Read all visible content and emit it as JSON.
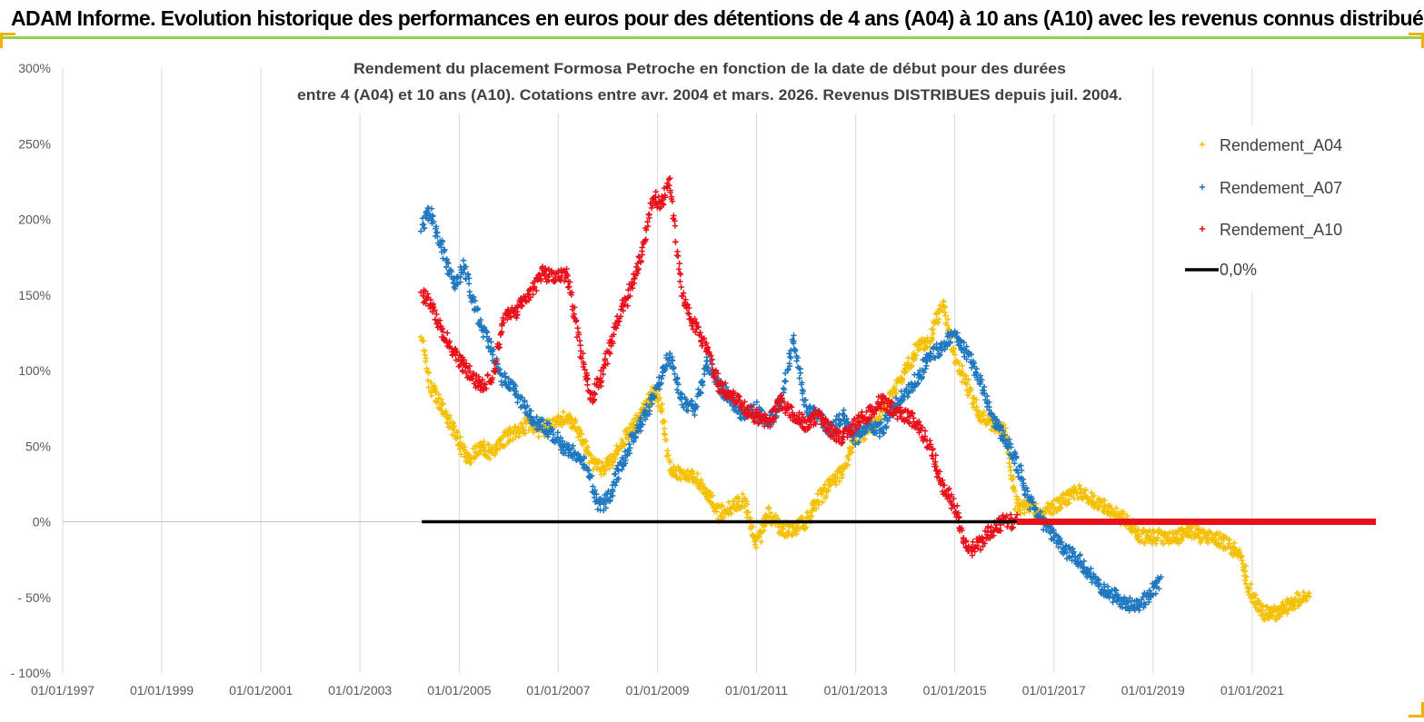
{
  "header": {
    "title": "ADAM Informe. Evolution historique des performances en euros pour des détentions de 4 ans (A04) à 10 ans (A10) avec les revenus connus distribués"
  },
  "chart_data": {
    "type": "scatter",
    "title_lines": [
      "Rendement du placement Formosa Petroche  en fonction de la date de début pour des durées",
      "entre 4 (A04) et 10 ans (A10). Cotations entre avr. 2004 et mars. 2026. Revenus DISTRIBUES depuis juil. 2004."
    ],
    "xlabel": "",
    "ylabel": "",
    "ylim": [
      -100,
      300
    ],
    "yticks": [
      300,
      250,
      200,
      150,
      100,
      50,
      0,
      -50,
      -100
    ],
    "ytick_labels": [
      "300%",
      "250%",
      "200%",
      "150%",
      "100%",
      "50%",
      "0%",
      "- 50%",
      "- 100%"
    ],
    "xlim": [
      "1997-01-01",
      "2023-07-01"
    ],
    "xticks": [
      "1997-01-01",
      "1999-01-01",
      "2001-01-01",
      "2003-01-01",
      "2005-01-01",
      "2007-01-01",
      "2009-01-01",
      "2011-01-01",
      "2013-01-01",
      "2015-01-01",
      "2017-01-01",
      "2019-01-01",
      "2021-01-01"
    ],
    "xtick_labels": [
      "01/01/1997",
      "01/01/1999",
      "01/01/2001",
      "01/01/2003",
      "01/01/2005",
      "01/01/2007",
      "01/01/2009",
      "01/01/2011",
      "01/01/2013",
      "01/01/2015",
      "01/01/2017",
      "01/01/2019",
      "01/01/2021"
    ],
    "grid": "vertical",
    "legend_position": "top-right",
    "series": [
      {
        "name": "Rendement_A04",
        "color": "#f5c000",
        "marker": "plus",
        "x": [
          "2004-04-01",
          "2004-06-01",
          "2004-09-01",
          "2004-12-01",
          "2005-03-01",
          "2005-06-01",
          "2005-09-01",
          "2005-12-01",
          "2006-03-01",
          "2006-06-01",
          "2006-09-01",
          "2006-12-01",
          "2007-03-01",
          "2007-06-01",
          "2007-09-01",
          "2007-12-01",
          "2008-03-01",
          "2008-06-01",
          "2008-09-01",
          "2008-12-01",
          "2009-02-01",
          "2009-04-01",
          "2009-07-01",
          "2009-10-01",
          "2010-01-01",
          "2010-04-01",
          "2010-07-01",
          "2010-10-01",
          "2011-01-01",
          "2011-04-01",
          "2011-07-01",
          "2011-10-01",
          "2012-01-01",
          "2012-04-01",
          "2012-07-01",
          "2012-10-01",
          "2013-01-01",
          "2013-04-01",
          "2013-07-01",
          "2013-10-01",
          "2014-01-01",
          "2014-04-01",
          "2014-07-01",
          "2014-10-01",
          "2015-01-01",
          "2015-04-01",
          "2015-07-01",
          "2015-10-01",
          "2016-01-01",
          "2016-04-01",
          "2016-07-01",
          "2016-10-01",
          "2017-01-01",
          "2017-04-01",
          "2017-07-01",
          "2017-10-01",
          "2018-01-01",
          "2018-04-01",
          "2018-07-01",
          "2018-10-01",
          "2019-01-01",
          "2019-04-01",
          "2019-07-01",
          "2019-10-01",
          "2020-01-01",
          "2020-04-01",
          "2020-07-01",
          "2020-10-01",
          "2021-01-01",
          "2021-04-01",
          "2021-07-01",
          "2021-10-01",
          "2022-01-01",
          "2022-03-01"
        ],
        "y": [
          120,
          90,
          75,
          60,
          40,
          50,
          45,
          55,
          60,
          65,
          60,
          65,
          70,
          60,
          40,
          35,
          45,
          60,
          70,
          85,
          75,
          35,
          30,
          30,
          20,
          5,
          10,
          15,
          -15,
          5,
          -5,
          -5,
          0,
          15,
          25,
          35,
          55,
          60,
          70,
          85,
          100,
          115,
          120,
          145,
          110,
          90,
          70,
          65,
          60,
          10,
          10,
          5,
          10,
          15,
          20,
          15,
          10,
          5,
          0,
          -10,
          -10,
          -10,
          -10,
          -5,
          -10,
          -10,
          -15,
          -20,
          -50,
          -60,
          -60,
          -55,
          -50,
          -45
        ]
      },
      {
        "name": "Rendement_A07",
        "color": "#1f78c0",
        "marker": "plus",
        "x": [
          "2004-04-01",
          "2004-06-01",
          "2004-09-01",
          "2004-12-01",
          "2005-02-01",
          "2005-05-01",
          "2005-08-01",
          "2005-11-01",
          "2006-02-01",
          "2006-05-01",
          "2006-08-01",
          "2006-11-01",
          "2007-02-01",
          "2007-05-01",
          "2007-08-01",
          "2007-11-01",
          "2008-01-01",
          "2008-04-01",
          "2008-07-01",
          "2008-10-01",
          "2009-01-01",
          "2009-04-01",
          "2009-07-01",
          "2009-10-01",
          "2010-01-01",
          "2010-04-01",
          "2010-07-01",
          "2010-10-01",
          "2011-01-01",
          "2011-04-01",
          "2011-07-01",
          "2011-10-01",
          "2012-01-01",
          "2012-04-01",
          "2012-07-01",
          "2012-10-01",
          "2013-01-01",
          "2013-04-01",
          "2013-07-01",
          "2013-10-01",
          "2014-01-01",
          "2014-04-01",
          "2014-07-01",
          "2014-10-01",
          "2015-01-01",
          "2015-04-01",
          "2015-07-01",
          "2015-10-01",
          "2016-01-01",
          "2016-04-01",
          "2016-07-01",
          "2016-10-01",
          "2017-01-01",
          "2017-04-01",
          "2017-07-01",
          "2017-10-01",
          "2018-01-01",
          "2018-04-01",
          "2018-07-01",
          "2018-10-01",
          "2019-01-01",
          "2019-03-01"
        ],
        "y": [
          195,
          205,
          180,
          155,
          170,
          140,
          120,
          95,
          90,
          75,
          65,
          60,
          50,
          45,
          35,
          10,
          15,
          35,
          55,
          70,
          90,
          110,
          80,
          75,
          105,
          90,
          80,
          70,
          75,
          65,
          80,
          120,
          75,
          70,
          60,
          70,
          55,
          65,
          60,
          75,
          85,
          95,
          110,
          115,
          125,
          110,
          95,
          70,
          55,
          40,
          15,
          0,
          -10,
          -20,
          -25,
          -35,
          -45,
          -50,
          -55,
          -55,
          -45,
          -40
        ]
      },
      {
        "name": "Rendement_A10",
        "color": "#e8101a",
        "marker": "plus",
        "x": [
          "2004-04-01",
          "2004-06-01",
          "2004-09-01",
          "2004-12-01",
          "2005-03-01",
          "2005-06-01",
          "2005-09-01",
          "2005-12-01",
          "2006-03-01",
          "2006-06-01",
          "2006-09-01",
          "2006-12-01",
          "2007-03-01",
          "2007-06-01",
          "2007-09-01",
          "2007-12-01",
          "2008-03-01",
          "2008-06-01",
          "2008-09-01",
          "2008-12-01",
          "2009-02-01",
          "2009-04-01",
          "2009-07-01",
          "2009-10-01",
          "2010-01-01",
          "2010-04-01",
          "2010-07-01",
          "2010-10-01",
          "2011-01-01",
          "2011-04-01",
          "2011-07-01",
          "2011-10-01",
          "2012-01-01",
          "2012-04-01",
          "2012-07-01",
          "2012-10-01",
          "2013-01-01",
          "2013-04-01",
          "2013-07-01",
          "2013-10-01",
          "2014-01-01",
          "2014-04-01",
          "2014-07-01",
          "2014-10-01",
          "2015-01-01",
          "2015-04-01",
          "2015-07-01",
          "2015-10-01",
          "2016-01-01",
          "2016-04-01"
        ],
        "y": [
          150,
          145,
          125,
          110,
          100,
          90,
          95,
          135,
          140,
          150,
          165,
          160,
          165,
          120,
          80,
          100,
          130,
          150,
          175,
          215,
          210,
          225,
          150,
          130,
          115,
          90,
          85,
          75,
          70,
          65,
          80,
          70,
          65,
          70,
          60,
          55,
          65,
          70,
          80,
          75,
          70,
          65,
          50,
          25,
          10,
          -20,
          -15,
          -5,
          0,
          0
        ]
      },
      {
        "name": "0,0%",
        "color": "#000000",
        "type": "line",
        "x": [
          "2004-04-01",
          "2023-07-01"
        ],
        "y": [
          0,
          0
        ]
      }
    ],
    "red_zero_segment": {
      "x": [
        "2016-04-01",
        "2023-07-01"
      ],
      "y": [
        0,
        0
      ]
    }
  }
}
